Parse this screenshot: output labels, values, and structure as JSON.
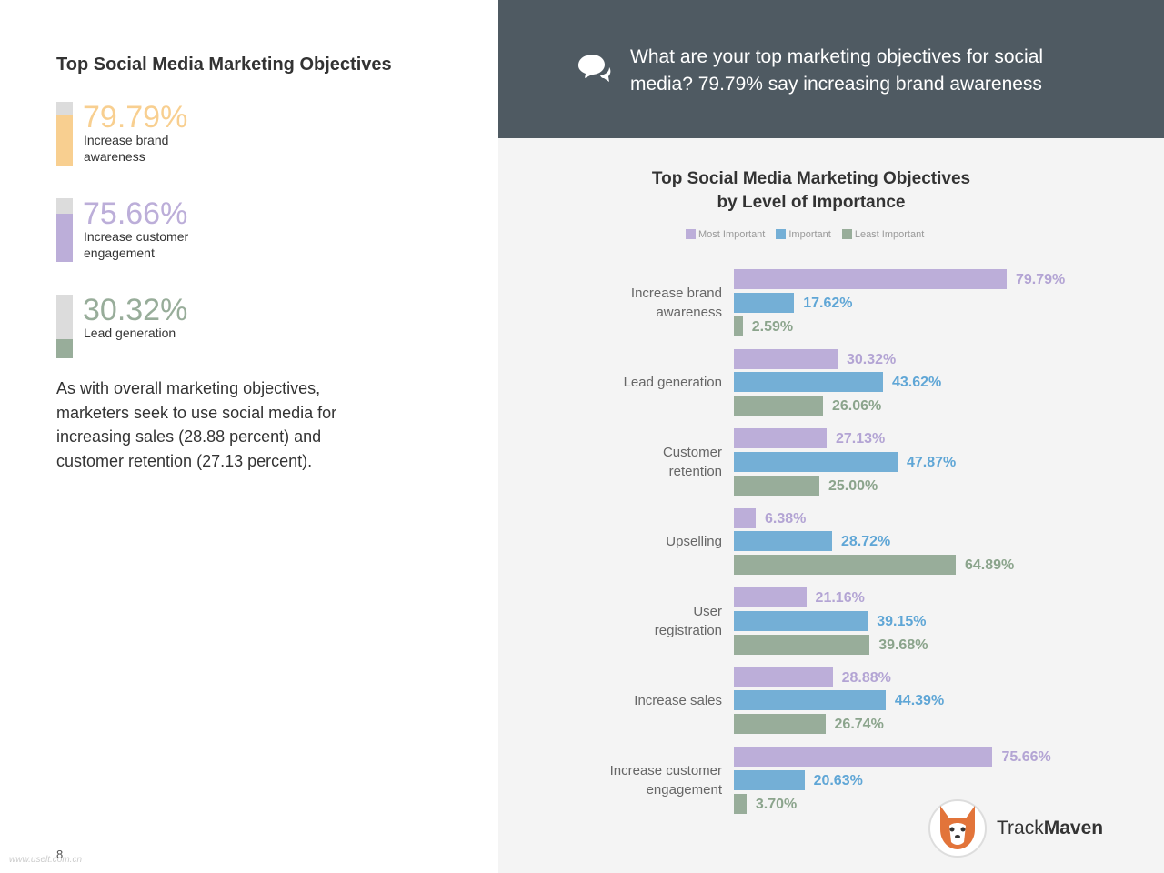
{
  "title": "Top Social Media Marketing Objectives",
  "highlights": [
    {
      "value": 79.79,
      "value_label": "79.79%",
      "text": "Increase brand\nawareness",
      "color": "#f8cf90"
    },
    {
      "value": 75.66,
      "value_label": "75.66%",
      "text": "Increase customer\nengagement",
      "color": "#bcaed9"
    },
    {
      "value": 30.32,
      "value_label": "30.32%",
      "text": "Lead generation",
      "color": "#98ad9a"
    }
  ],
  "paragraph": "As with overall marketing objectives, marketers seek to use social media for increasing sales (28.88 percent) and customer retention (27.13 percent).",
  "header": "What are your top marketing objectives for social media? 79.79% say increasing brand awareness",
  "page_number": "8",
  "watermark": "www.uselt.com.cn",
  "logo": {
    "part1": "Track",
    "part2": "Maven"
  },
  "chart_data": {
    "type": "bar",
    "orientation": "horizontal",
    "title": "Top Social Media Marketing Objectives\nby Level of Importance",
    "categories": [
      "Increase brand\nawareness",
      "Lead generation",
      "Customer\nretention",
      "Upselling",
      "User\nregistration",
      "Increase sales",
      "Increase customer\nengagement"
    ],
    "series": [
      {
        "name": "Most Important",
        "color": "#bcaed9",
        "values": [
          79.79,
          30.32,
          27.13,
          6.38,
          21.16,
          28.88,
          75.66
        ],
        "value_labels": [
          "79.79%",
          "30.32%",
          "27.13%",
          "6.38%",
          "21.16%",
          "28.88%",
          "75.66%"
        ]
      },
      {
        "name": "Important",
        "color": "#74afd6",
        "values": [
          17.62,
          43.62,
          47.87,
          28.72,
          39.15,
          44.39,
          20.63
        ],
        "value_labels": [
          "17.62%",
          "43.62%",
          "47.87%",
          "28.72%",
          "39.15%",
          "44.39%",
          "20.63%"
        ]
      },
      {
        "name": "Least Important",
        "color": "#98ad9a",
        "values": [
          2.59,
          26.06,
          25.0,
          64.89,
          39.68,
          26.74,
          3.7
        ],
        "value_labels": [
          "2.59%",
          "26.06%",
          "25.00%",
          "64.89%",
          "39.68%",
          "26.74%",
          "3.70%"
        ]
      }
    ],
    "legend": "top"
  }
}
